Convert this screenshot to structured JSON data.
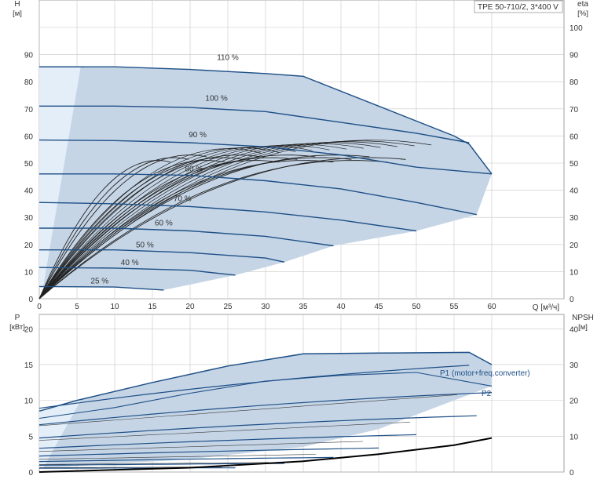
{
  "title_box": "TPE 50-710/2, 3*400 V",
  "top": {
    "y_left_label": "H",
    "y_left_unit": "[м]",
    "y_right_label": "eta",
    "y_right_unit": "[%]",
    "x_label": "Q [м³/ч]",
    "x_ticks": [
      "0",
      "5",
      "10",
      "15",
      "20",
      "25",
      "30",
      "35",
      "40",
      "45",
      "50",
      "55",
      "60"
    ],
    "y_left_ticks": [
      "0",
      "10",
      "20",
      "30",
      "40",
      "50",
      "60",
      "70",
      "80",
      "90"
    ],
    "y_right_ticks": [
      "0",
      "10",
      "20",
      "30",
      "40",
      "50",
      "60",
      "70",
      "80",
      "90",
      "100"
    ]
  },
  "bottom": {
    "y_left_label": "P",
    "y_left_unit": "[кВт]",
    "y_right_label": "NPSH",
    "y_right_unit": "[м]",
    "y_left_ticks": [
      "0",
      "5",
      "10",
      "15",
      "20"
    ],
    "y_right_ticks": [
      "0",
      "10",
      "20",
      "30",
      "40"
    ],
    "label_p1": "P1 (motor+freq.converter)",
    "label_p2": "P2"
  },
  "colors": {
    "curve": "#1e4f86",
    "fill": "#c5d5e6",
    "fill_left": "#e3eef9",
    "grid": "#c8c8c8",
    "eff": "#222222"
  },
  "chart_data": [
    {
      "type": "line",
      "title": "",
      "xlabel": "Q [м³/ч]",
      "ylabel": "H [м]",
      "y2label": "eta [%]",
      "xlim": [
        0,
        60
      ],
      "ylim": [
        0,
        100
      ],
      "y2lim": [
        0,
        100
      ],
      "grid": true,
      "series": [
        {
          "name": "110 %",
          "speed": 1.1,
          "points": [
            [
              0,
              85.5
            ],
            [
              10,
              85.5
            ],
            [
              20,
              84.5
            ],
            [
              30,
              83
            ],
            [
              35,
              82
            ],
            [
              45,
              71
            ],
            [
              55,
              60
            ],
            [
              57,
              57
            ]
          ]
        },
        {
          "name": "100 %",
          "speed": 1.0,
          "points": [
            [
              0,
              71
            ],
            [
              10,
              71
            ],
            [
              20,
              70.5
            ],
            [
              30,
              69
            ],
            [
              40,
              65
            ],
            [
              50,
              61
            ],
            [
              57,
              57.5
            ]
          ]
        },
        {
          "name": "90 %",
          "speed": 0.9,
          "points": [
            [
              0,
              58.5
            ],
            [
              10,
              58.3
            ],
            [
              20,
              57.5
            ],
            [
              30,
              56
            ],
            [
              40,
              53
            ],
            [
              50,
              48.5
            ],
            [
              60,
              46
            ]
          ]
        },
        {
          "name": "80 %",
          "speed": 0.8,
          "points": [
            [
              0,
              46
            ],
            [
              10,
              46
            ],
            [
              20,
              45.5
            ],
            [
              30,
              43.5
            ],
            [
              40,
              40.5
            ],
            [
              50,
              35.5
            ],
            [
              58,
              31
            ]
          ]
        },
        {
          "name": "70 %",
          "speed": 0.7,
          "points": [
            [
              0,
              35.5
            ],
            [
              10,
              35
            ],
            [
              20,
              34
            ],
            [
              30,
              32
            ],
            [
              40,
              29
            ],
            [
              50,
              25
            ]
          ]
        },
        {
          "name": "60 %",
          "speed": 0.6,
          "points": [
            [
              0,
              26
            ],
            [
              10,
              26
            ],
            [
              20,
              25
            ],
            [
              30,
              23
            ],
            [
              39,
              19.5
            ]
          ]
        },
        {
          "name": "50 %",
          "speed": 0.5,
          "points": [
            [
              0,
              18
            ],
            [
              10,
              18
            ],
            [
              20,
              17
            ],
            [
              30,
              15
            ],
            [
              32.5,
              13.5
            ]
          ]
        },
        {
          "name": "40 %",
          "speed": 0.4,
          "points": [
            [
              0,
              11.5
            ],
            [
              10,
              11.3
            ],
            [
              20,
              10.5
            ],
            [
              26,
              8.7
            ]
          ]
        },
        {
          "name": "25 %",
          "speed": 0.25,
          "points": [
            [
              0,
              4.5
            ],
            [
              10,
              4.3
            ],
            [
              16.5,
              3.2
            ]
          ]
        }
      ],
      "annotations": [
        "110 %",
        "100 %",
        "90 %",
        "80 %",
        "70 %",
        "60 %",
        "50 %",
        "40 %",
        "25 %"
      ]
    },
    {
      "type": "line",
      "title": "",
      "xlabel": "Q [м³/ч]",
      "ylabel": "P [кВт]",
      "y2label": "NPSH [м]",
      "xlim": [
        0,
        60
      ],
      "ylim": [
        0,
        22
      ],
      "y2lim": [
        0,
        44
      ],
      "grid": true,
      "series": [
        {
          "name": "P1 (motor+freq.converter)",
          "points": [
            [
              0,
              8.5
            ],
            [
              5,
              10
            ],
            [
              15,
              12.5
            ],
            [
              25,
              14.8
            ],
            [
              35,
              16.5
            ],
            [
              45,
              16.6
            ],
            [
              57,
              16.7
            ],
            [
              60,
              15
            ]
          ]
        },
        {
          "name": "P2",
          "points": [
            [
              0,
              7.5
            ],
            [
              10,
              9
            ],
            [
              20,
              11
            ],
            [
              30,
              12.7
            ],
            [
              40,
              13.5
            ],
            [
              50,
              13.9
            ],
            [
              60,
              12
            ]
          ]
        },
        {
          "name": "NPSH",
          "axis": "y2",
          "points": [
            [
              0,
              0
            ],
            [
              20,
              1.2
            ],
            [
              35,
              3
            ],
            [
              45,
              5
            ],
            [
              55,
              7.5
            ],
            [
              60,
              9.5
            ]
          ]
        }
      ]
    }
  ]
}
